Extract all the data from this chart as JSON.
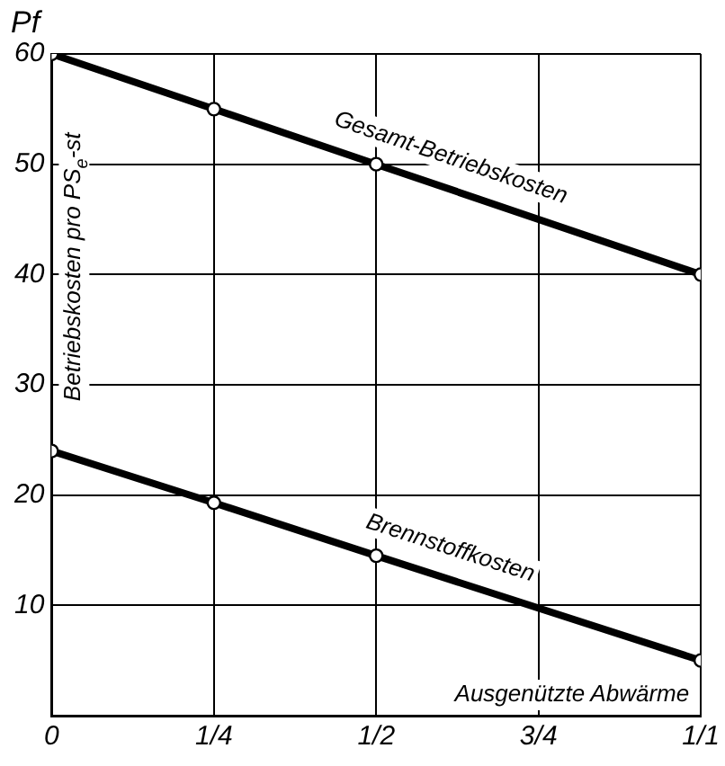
{
  "chart_data": {
    "type": "line",
    "ylabel": "Betriebskosten pro PS$_{e}$-st",
    "xlabel": "Ausgenützte Abwärme",
    "annotations": [
      "Pf"
    ],
    "xlim": [
      0,
      1
    ],
    "xticks": [
      0,
      {
        "value": 0.25,
        "label": "1/4"
      },
      {
        "value": 0.5,
        "label": "1/2"
      },
      {
        "value": 0.75,
        "label": "3/4"
      },
      {
        "value": 1,
        "label": "1/1"
      }
    ],
    "ylim": [
      0,
      60
    ],
    "yticks": [
      {
        "value": 0,
        "label": null
      },
      10,
      20,
      30,
      40,
      50,
      60
    ],
    "grid": true,
    "legend": false,
    "marker": "circle",
    "line_style": "solid",
    "series": [
      {
        "name": "Gesamt-Betriebskosten",
        "color": "#000000",
        "x": [
          0,
          0.25,
          0.5,
          1
        ],
        "values": [
          60,
          55,
          50,
          40
        ]
      },
      {
        "name": "Brennstoffkosten",
        "color": "#000000",
        "x": [
          0,
          0.25,
          0.5,
          1
        ],
        "values": [
          24,
          19.3,
          14.5,
          5
        ]
      }
    ]
  }
}
